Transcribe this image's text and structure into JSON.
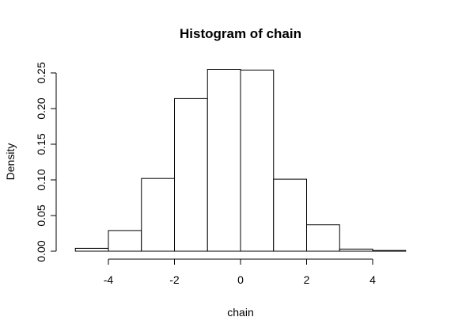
{
  "chart_data": {
    "type": "bar",
    "title": "Histogram of chain",
    "xlabel": "chain",
    "ylabel": "Density",
    "xlim": [
      -5,
      5
    ],
    "ylim": [
      0,
      0.25
    ],
    "x_ticks": [
      -4,
      -2,
      0,
      2,
      4
    ],
    "x_tick_labels": [
      "-4",
      "-2",
      "0",
      "2",
      "4"
    ],
    "y_ticks": [
      0,
      0.05,
      0.1,
      0.15,
      0.2,
      0.25
    ],
    "y_tick_labels": [
      "0.00",
      "0.05",
      "0.10",
      "0.15",
      "0.20",
      "0.25"
    ],
    "bins": [
      {
        "x0": -5,
        "x1": -4,
        "density": 0.004
      },
      {
        "x0": -4,
        "x1": -3,
        "density": 0.029
      },
      {
        "x0": -3,
        "x1": -2,
        "density": 0.102
      },
      {
        "x0": -2,
        "x1": -1,
        "density": 0.214
      },
      {
        "x0": -1,
        "x1": 0,
        "density": 0.255
      },
      {
        "x0": 0,
        "x1": 1,
        "density": 0.254
      },
      {
        "x0": 1,
        "x1": 2,
        "density": 0.101
      },
      {
        "x0": 2,
        "x1": 3,
        "density": 0.037
      },
      {
        "x0": 3,
        "x1": 4,
        "density": 0.003
      },
      {
        "x0": 4,
        "x1": 5,
        "density": 0.001
      }
    ],
    "grid": false,
    "legend": "none"
  }
}
